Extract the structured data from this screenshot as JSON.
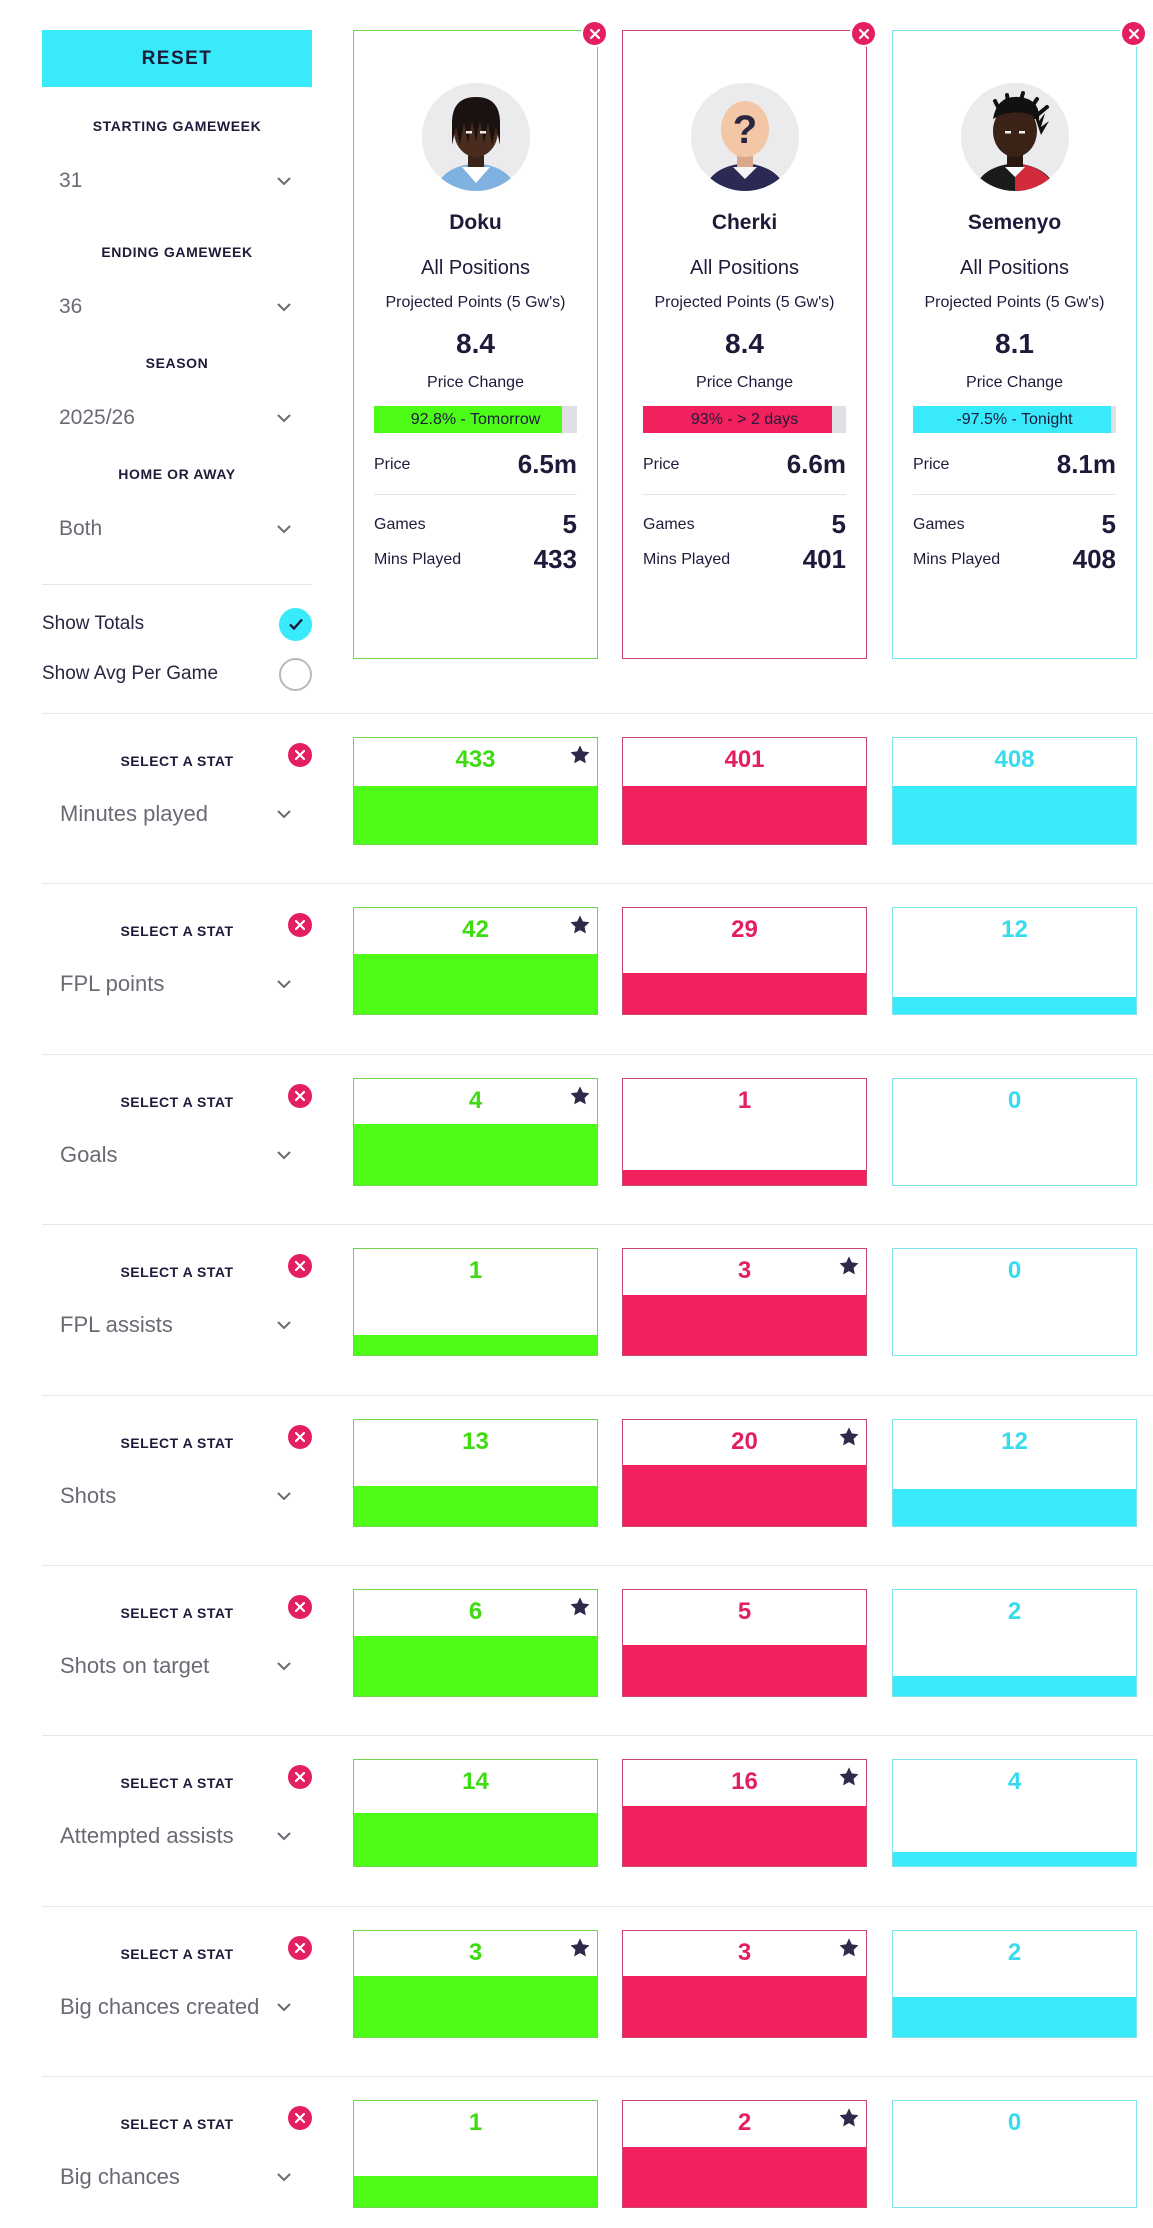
{
  "colors": {
    "green": "#4dfd18",
    "magenta": "#f2205c",
    "cyan": "#38eafa",
    "green_border": "#6ed64a",
    "magenta_border": "#c8486b",
    "cyan_border": "#7ee3ea",
    "green_text": "#3edb10",
    "magenta_text": "#e41f60",
    "cyan_text": "#36dcee",
    "star": "#2e2a4a",
    "remove": "#e41f60"
  },
  "sidebar": {
    "reset_label": "RESET",
    "starting_gameweek_label": "STARTING GAMEWEEK",
    "starting_gameweek_value": "31",
    "ending_gameweek_label": "ENDING GAMEWEEK",
    "ending_gameweek_value": "36",
    "season_label": "SEASON",
    "season_value": "2025/26",
    "home_away_label": "HOME OR AWAY",
    "home_away_value": "Both",
    "show_totals_label": "Show Totals",
    "show_totals_checked": true,
    "show_avg_label": "Show Avg Per Game",
    "show_avg_checked": false
  },
  "players": [
    {
      "name": "Doku",
      "position": "All Positions",
      "projected_label": "Projected Points (5 Gw's)",
      "projected_points": "8.4",
      "price_change_label": "Price Change",
      "price_change_text": "92.8% - Tomorrow",
      "price_change_pct": 92.8,
      "price_label": "Price",
      "price": "6.5m",
      "games_label": "Games",
      "games": "5",
      "mins_label": "Mins Played",
      "mins": "433",
      "avatar_icon": "player-avatar-icon",
      "theme": "green"
    },
    {
      "name": "Cherki",
      "position": "All Positions",
      "projected_label": "Projected Points (5 Gw's)",
      "projected_points": "8.4",
      "price_change_label": "Price Change",
      "price_change_text": "93% - > 2 days",
      "price_change_pct": 93,
      "price_label": "Price",
      "price": "6.6m",
      "games_label": "Games",
      "games": "5",
      "mins_label": "Mins Played",
      "mins": "401",
      "avatar_icon": "unknown-player-avatar-icon",
      "theme": "magenta"
    },
    {
      "name": "Semenyo",
      "position": "All Positions",
      "projected_label": "Projected Points (5 Gw's)",
      "projected_points": "8.1",
      "price_change_label": "Price Change",
      "price_change_text": "-97.5% - Tonight",
      "price_change_pct": -97.5,
      "price_label": "Price",
      "price": "8.1m",
      "games_label": "Games",
      "games": "5",
      "mins_label": "Mins Played",
      "mins": "408",
      "avatar_icon": "player-avatar-icon",
      "theme": "cyan"
    }
  ],
  "stat_label": "SELECT A STAT",
  "stats": [
    {
      "name": "Minutes played",
      "values": [
        433,
        401,
        408
      ],
      "fill": [
        0.55,
        0.55,
        0.55
      ],
      "star": [
        true,
        false,
        false
      ]
    },
    {
      "name": "FPL points",
      "values": [
        42,
        29,
        12
      ],
      "fill": [
        0.57,
        0.39,
        0.16
      ],
      "star": [
        true,
        false,
        false
      ]
    },
    {
      "name": "Goals",
      "values": [
        4,
        1,
        0
      ],
      "fill": [
        0.57,
        0.14,
        0
      ],
      "star": [
        true,
        false,
        false
      ]
    },
    {
      "name": "FPL assists",
      "values": [
        1,
        3,
        0
      ],
      "fill": [
        0.19,
        0.57,
        0
      ],
      "star": [
        false,
        true,
        false
      ]
    },
    {
      "name": "Shots",
      "values": [
        13,
        20,
        12
      ],
      "fill": [
        0.37,
        0.57,
        0.35
      ],
      "star": [
        false,
        true,
        false
      ]
    },
    {
      "name": "Shots on target",
      "values": [
        6,
        5,
        2
      ],
      "fill": [
        0.57,
        0.48,
        0.19
      ],
      "star": [
        true,
        false,
        false
      ]
    },
    {
      "name": "Attempted assists",
      "values": [
        14,
        16,
        4
      ],
      "fill": [
        0.5,
        0.57,
        0.14
      ],
      "star": [
        false,
        true,
        false
      ]
    },
    {
      "name": "Big chances created",
      "values": [
        3,
        3,
        2
      ],
      "fill": [
        0.57,
        0.57,
        0.38
      ],
      "star": [
        true,
        true,
        false
      ]
    },
    {
      "name": "Big chances",
      "values": [
        1,
        2,
        0
      ],
      "fill": [
        0.29,
        0.57,
        0
      ],
      "star": [
        false,
        true,
        false
      ]
    }
  ]
}
